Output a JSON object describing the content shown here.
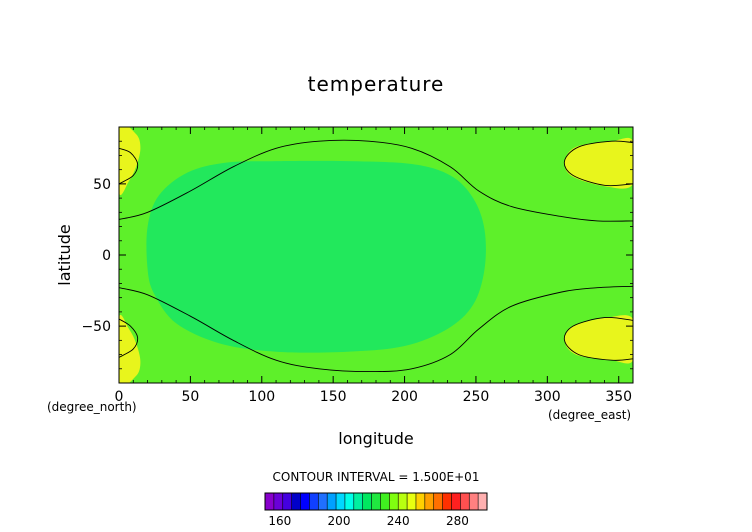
{
  "chart_data": {
    "type": "heatmap",
    "title": "temperature",
    "xlabel": "longitude",
    "ylabel": "latitude",
    "x_units": "(degree_east)",
    "y_units": "(degree_north)",
    "xlim": [
      0,
      360
    ],
    "ylim": [
      -90,
      90
    ],
    "x_ticks": [
      0,
      50,
      100,
      150,
      200,
      250,
      300,
      350
    ],
    "y_ticks": [
      -50,
      0,
      50
    ],
    "contour_interval_text": "CONTOUR INTERVAL = 1.500E+01",
    "contour_levels": [
      225,
      240,
      255
    ],
    "regions": [
      {
        "level": "225-240",
        "color": "#22e85c",
        "outline": [
          [
            20,
            -10
          ],
          [
            20,
            20
          ],
          [
            28,
            42
          ],
          [
            48,
            58
          ],
          [
            75,
            65
          ],
          [
            110,
            66
          ],
          [
            160,
            66
          ],
          [
            205,
            64
          ],
          [
            232,
            56
          ],
          [
            248,
            40
          ],
          [
            256,
            18
          ],
          [
            256,
            -10
          ],
          [
            248,
            -35
          ],
          [
            230,
            -52
          ],
          [
            200,
            -64
          ],
          [
            160,
            -68
          ],
          [
            110,
            -68
          ],
          [
            70,
            -62
          ],
          [
            40,
            -48
          ],
          [
            25,
            -28
          ]
        ]
      },
      {
        "level": "255-270",
        "color": "#e8f51c",
        "outline": [
          [
            0,
            44
          ],
          [
            0,
            90
          ],
          [
            12,
            85
          ],
          [
            15,
            75
          ],
          [
            12,
            62
          ],
          [
            7,
            52
          ]
        ]
      },
      {
        "level": "255-270",
        "color": "#e8f51c",
        "outline": [
          [
            0,
            -44
          ],
          [
            0,
            -90
          ],
          [
            12,
            -85
          ],
          [
            15,
            -75
          ],
          [
            12,
            -62
          ],
          [
            7,
            -52
          ]
        ]
      },
      {
        "level": "255-270",
        "color": "#e8f51c",
        "outline": [
          [
            360,
            50
          ],
          [
            342,
            48
          ],
          [
            318,
            55
          ],
          [
            312,
            65
          ],
          [
            320,
            76
          ],
          [
            345,
            80
          ],
          [
            360,
            80
          ]
        ]
      },
      {
        "level": "255-270",
        "color": "#e8f51c",
        "outline": [
          [
            360,
            -45
          ],
          [
            342,
            -44
          ],
          [
            318,
            -50
          ],
          [
            312,
            -60
          ],
          [
            320,
            -70
          ],
          [
            345,
            -74
          ],
          [
            360,
            -74
          ]
        ]
      }
    ],
    "contours": [
      {
        "level": 240,
        "points": [
          [
            0,
            25
          ],
          [
            20,
            30
          ],
          [
            50,
            45
          ],
          [
            80,
            62
          ],
          [
            110,
            75
          ],
          [
            140,
            80
          ],
          [
            175,
            80
          ],
          [
            205,
            75
          ],
          [
            232,
            62
          ],
          [
            252,
            45
          ],
          [
            275,
            34
          ],
          [
            310,
            27
          ],
          [
            335,
            24
          ],
          [
            360,
            24
          ]
        ]
      },
      {
        "level": 240,
        "points": [
          [
            0,
            -23
          ],
          [
            20,
            -28
          ],
          [
            50,
            -43
          ],
          [
            80,
            -60
          ],
          [
            110,
            -74
          ],
          [
            140,
            -80
          ],
          [
            175,
            -82
          ],
          [
            205,
            -80
          ],
          [
            232,
            -70
          ],
          [
            252,
            -52
          ],
          [
            275,
            -36
          ],
          [
            310,
            -26
          ],
          [
            335,
            -23
          ],
          [
            360,
            -22
          ]
        ]
      },
      {
        "level": 255,
        "points": [
          [
            0,
            75
          ],
          [
            8,
            72
          ],
          [
            13,
            64
          ],
          [
            10,
            56
          ],
          [
            0,
            50
          ]
        ]
      },
      {
        "level": 255,
        "points": [
          [
            0,
            -45
          ],
          [
            8,
            -50
          ],
          [
            13,
            -58
          ],
          [
            10,
            -66
          ],
          [
            0,
            -72
          ]
        ]
      },
      {
        "level": 255,
        "points": [
          [
            360,
            50
          ],
          [
            340,
            49
          ],
          [
            318,
            56
          ],
          [
            312,
            66
          ],
          [
            322,
            76
          ],
          [
            345,
            80
          ],
          [
            360,
            79
          ]
        ]
      },
      {
        "level": 255,
        "points": [
          [
            360,
            -46
          ],
          [
            340,
            -44
          ],
          [
            318,
            -50
          ],
          [
            312,
            -60
          ],
          [
            322,
            -70
          ],
          [
            345,
            -74
          ],
          [
            360,
            -73
          ]
        ]
      }
    ],
    "background_color": "#5ef02a",
    "colorbar": {
      "vmin": 150,
      "vmax": 300,
      "step": 5,
      "ticks": [
        160,
        200,
        240,
        280
      ],
      "colors": [
        "#8800cc",
        "#6a00d8",
        "#4400e0",
        "#0000c8",
        "#0000ff",
        "#1040ff",
        "#2070ff",
        "#00a0ff",
        "#00d8ff",
        "#00ffe8",
        "#00f0a0",
        "#00e860",
        "#20e840",
        "#40f020",
        "#80ff10",
        "#b8ff10",
        "#e8ff10",
        "#ffd000",
        "#ffa000",
        "#ff7000",
        "#ff3000",
        "#ff2020",
        "#ff5050",
        "#ff8080",
        "#ffb0b0"
      ]
    }
  }
}
